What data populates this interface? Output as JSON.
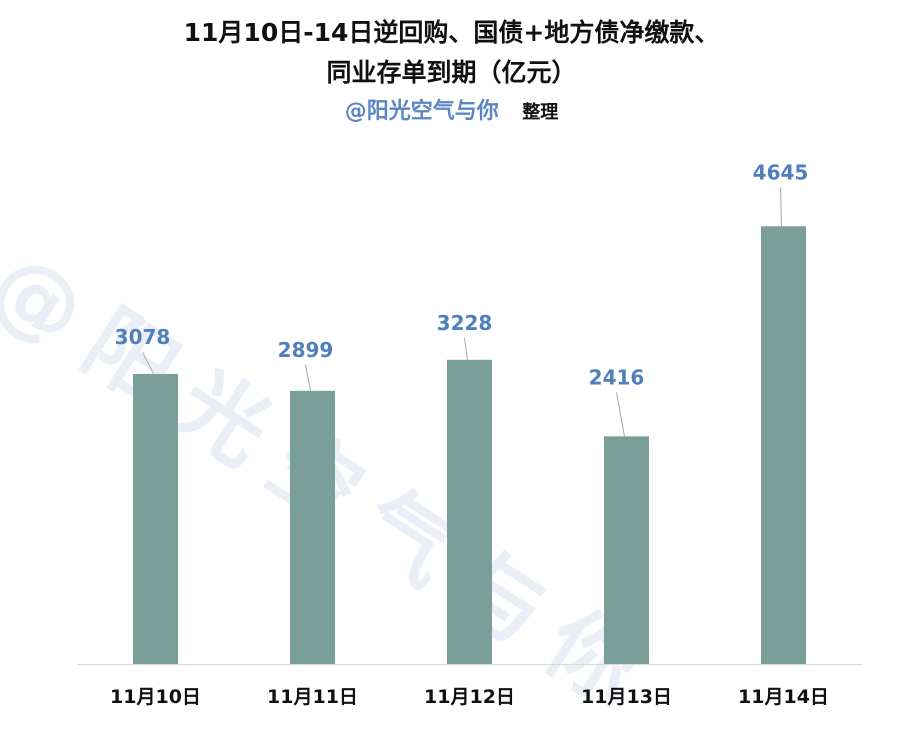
{
  "title_line1": "11月10日-14日逆回购、国债+地方债净缴款、",
  "title_line2": "同业存单到期（亿元）",
  "handle": "@阳光空气与你",
  "note": "整理",
  "watermark": "@阳光空气与你",
  "colors": {
    "bar": "#7a9f98",
    "label": "#4f7fbd",
    "axis": "#d9d9d9",
    "leader": "#a6a6a6"
  },
  "chart_data": {
    "type": "bar",
    "categories": [
      "11月10日",
      "11月11日",
      "11月12日",
      "11月13日",
      "11月14日"
    ],
    "values": [
      3078,
      2899,
      3228,
      2416,
      4645
    ],
    "ylim": [
      0,
      5000
    ],
    "legend": "none",
    "grid": false
  }
}
